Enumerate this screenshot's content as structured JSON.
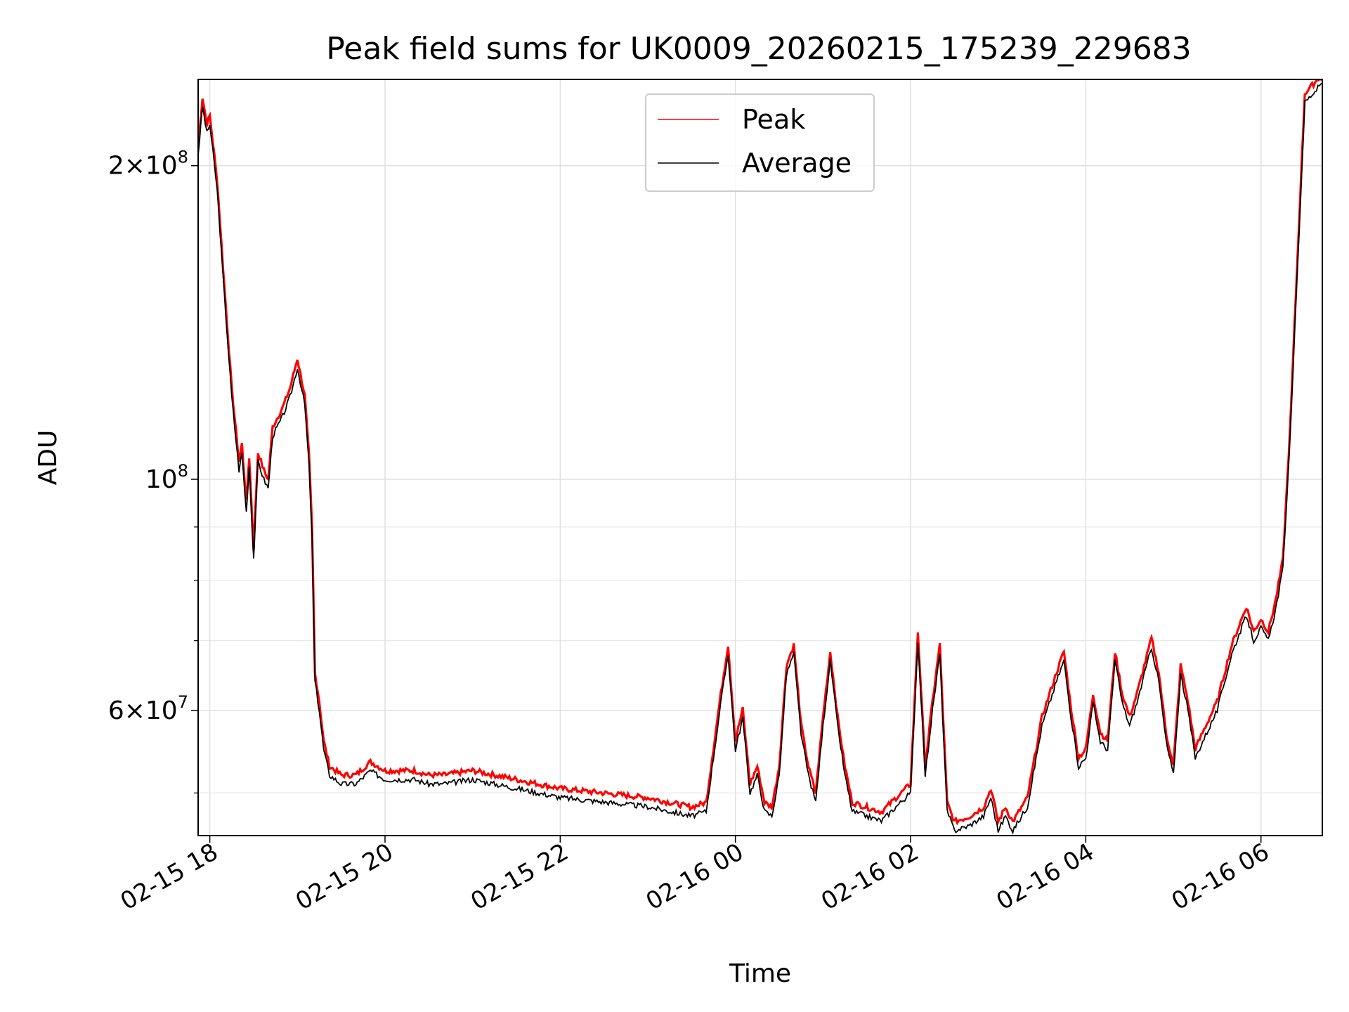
{
  "chart_data": {
    "type": "line",
    "title": "Peak field sums for UK0009_20260215_175239_229683",
    "xlabel": "Time",
    "ylabel": "ADU",
    "x_axis": {
      "kind": "datetime",
      "range": [
        "2026-02-15 17:52",
        "2026-02-16 06:42"
      ],
      "tick_values": [
        "2026-02-15 18:00",
        "2026-02-15 20:00",
        "2026-02-15 22:00",
        "2026-02-16 00:00",
        "2026-02-16 02:00",
        "2026-02-16 04:00",
        "2026-02-16 06:00"
      ],
      "tick_labels": [
        "02-15 18",
        "02-15 20",
        "02-15 22",
        "02-16 00",
        "02-16 02",
        "02-16 04",
        "02-16 06"
      ],
      "tick_rotation": "30 degrees"
    },
    "y_axis": {
      "scale": "log",
      "range": [
        45500000,
        242000000
      ],
      "labeled_ticks": [
        {
          "value": 60000000,
          "mantissa": "6",
          "times": "×",
          "base": "10",
          "exponent": "7"
        },
        {
          "value": 100000000,
          "mantissa": "",
          "times": "",
          "base": "10",
          "exponent": "8"
        },
        {
          "value": 200000000,
          "mantissa": "2",
          "times": "×",
          "base": "10",
          "exponent": "8"
        }
      ],
      "minor_ticks": [
        50000000,
        70000000,
        80000000,
        90000000
      ]
    },
    "grid": true,
    "legend": {
      "placement": "top-center",
      "entries": [
        {
          "label": "Peak",
          "color": "#ff0000"
        },
        {
          "label": "Average",
          "color": "#000000"
        }
      ]
    },
    "series": [
      {
        "name": "Average",
        "color": "#000000",
        "points": [
          [
            "2026-02-15 17:52",
            205000000
          ],
          [
            "2026-02-15 17:55",
            228000000
          ],
          [
            "2026-02-15 17:58",
            215000000
          ],
          [
            "2026-02-15 18:00",
            219000000
          ],
          [
            "2026-02-15 18:05",
            190000000
          ],
          [
            "2026-02-15 18:10",
            150000000
          ],
          [
            "2026-02-15 18:15",
            120000000
          ],
          [
            "2026-02-15 18:20",
            102000000
          ],
          [
            "2026-02-15 18:22",
            106000000
          ],
          [
            "2026-02-15 18:25",
            93000000
          ],
          [
            "2026-02-15 18:27",
            103000000
          ],
          [
            "2026-02-15 18:30",
            84000000
          ],
          [
            "2026-02-15 18:33",
            104000000
          ],
          [
            "2026-02-15 18:37",
            100000000
          ],
          [
            "2026-02-15 18:40",
            98000000
          ],
          [
            "2026-02-15 18:43",
            110000000
          ],
          [
            "2026-02-15 18:50",
            115000000
          ],
          [
            "2026-02-15 18:55",
            120000000
          ],
          [
            "2026-02-15 19:00",
            128000000
          ],
          [
            "2026-02-15 19:05",
            118000000
          ],
          [
            "2026-02-15 19:08",
            103000000
          ],
          [
            "2026-02-15 19:10",
            88000000
          ],
          [
            "2026-02-15 19:12",
            64000000
          ],
          [
            "2026-02-15 19:15",
            60000000
          ],
          [
            "2026-02-15 19:18",
            55000000
          ],
          [
            "2026-02-15 19:22",
            52000000
          ],
          [
            "2026-02-15 19:30",
            51000000
          ],
          [
            "2026-02-15 19:40",
            51000000
          ],
          [
            "2026-02-15 19:50",
            52500000
          ],
          [
            "2026-02-15 20:00",
            51500000
          ],
          [
            "2026-02-15 20:20",
            51500000
          ],
          [
            "2026-02-15 20:30",
            51000000
          ],
          [
            "2026-02-15 20:40",
            51000000
          ],
          [
            "2026-02-15 21:00",
            51500000
          ],
          [
            "2026-02-15 21:30",
            50500000
          ],
          [
            "2026-02-15 22:00",
            49500000
          ],
          [
            "2026-02-15 22:30",
            49000000
          ],
          [
            "2026-02-15 23:00",
            48500000
          ],
          [
            "2026-02-15 23:30",
            47500000
          ],
          [
            "2026-02-15 23:40",
            48000000
          ],
          [
            "2026-02-15 23:50",
            61000000
          ],
          [
            "2026-02-15 23:55",
            68000000
          ],
          [
            "2026-02-16 00:00",
            55000000
          ],
          [
            "2026-02-16 00:05",
            59000000
          ],
          [
            "2026-02-16 00:10",
            50000000
          ],
          [
            "2026-02-16 00:15",
            52000000
          ],
          [
            "2026-02-16 00:20",
            48000000
          ],
          [
            "2026-02-16 00:25",
            47500000
          ],
          [
            "2026-02-16 00:30",
            52000000
          ],
          [
            "2026-02-16 00:35",
            65000000
          ],
          [
            "2026-02-16 00:40",
            68000000
          ],
          [
            "2026-02-16 00:45",
            57000000
          ],
          [
            "2026-02-16 00:50",
            52000000
          ],
          [
            "2026-02-16 00:55",
            49000000
          ],
          [
            "2026-02-16 01:00",
            58000000
          ],
          [
            "2026-02-16 01:05",
            67000000
          ],
          [
            "2026-02-16 01:10",
            58000000
          ],
          [
            "2026-02-16 01:15",
            52000000
          ],
          [
            "2026-02-16 01:20",
            48000000
          ],
          [
            "2026-02-16 01:30",
            47500000
          ],
          [
            "2026-02-16 01:40",
            47000000
          ],
          [
            "2026-02-16 01:50",
            48500000
          ],
          [
            "2026-02-16 02:00",
            50000000
          ],
          [
            "2026-02-16 02:05",
            70000000
          ],
          [
            "2026-02-16 02:10",
            52000000
          ],
          [
            "2026-02-16 02:15",
            60000000
          ],
          [
            "2026-02-16 02:20",
            68000000
          ],
          [
            "2026-02-16 02:25",
            48000000
          ],
          [
            "2026-02-16 02:30",
            46000000
          ],
          [
            "2026-02-16 02:40",
            46500000
          ],
          [
            "2026-02-16 02:50",
            47500000
          ],
          [
            "2026-02-16 02:55",
            49500000
          ],
          [
            "2026-02-16 03:00",
            46000000
          ],
          [
            "2026-02-16 03:05",
            47500000
          ],
          [
            "2026-02-16 03:10",
            46000000
          ],
          [
            "2026-02-16 03:20",
            48500000
          ],
          [
            "2026-02-16 03:30",
            58000000
          ],
          [
            "2026-02-16 03:40",
            64000000
          ],
          [
            "2026-02-16 03:45",
            67000000
          ],
          [
            "2026-02-16 03:50",
            59000000
          ],
          [
            "2026-02-16 03:55",
            53000000
          ],
          [
            "2026-02-16 04:00",
            54000000
          ],
          [
            "2026-02-16 04:05",
            61000000
          ],
          [
            "2026-02-16 04:10",
            56000000
          ],
          [
            "2026-02-16 04:15",
            55000000
          ],
          [
            "2026-02-16 04:20",
            67000000
          ],
          [
            "2026-02-16 04:25",
            61000000
          ],
          [
            "2026-02-16 04:30",
            58000000
          ],
          [
            "2026-02-16 04:35",
            61000000
          ],
          [
            "2026-02-16 04:45",
            69000000
          ],
          [
            "2026-02-16 04:50",
            64000000
          ],
          [
            "2026-02-16 04:55",
            56000000
          ],
          [
            "2026-02-16 05:00",
            52000000
          ],
          [
            "2026-02-16 05:05",
            65000000
          ],
          [
            "2026-02-16 05:10",
            60000000
          ],
          [
            "2026-02-16 05:15",
            54000000
          ],
          [
            "2026-02-16 05:20",
            56000000
          ],
          [
            "2026-02-16 05:30",
            60000000
          ],
          [
            "2026-02-16 05:40",
            68000000
          ],
          [
            "2026-02-16 05:50",
            74000000
          ],
          [
            "2026-02-16 05:55",
            70000000
          ],
          [
            "2026-02-16 06:00",
            72000000
          ],
          [
            "2026-02-16 06:05",
            70000000
          ],
          [
            "2026-02-16 06:10",
            75000000
          ],
          [
            "2026-02-16 06:15",
            82000000
          ],
          [
            "2026-02-16 06:20",
            110000000
          ],
          [
            "2026-02-16 06:25",
            160000000
          ],
          [
            "2026-02-16 06:30",
            230000000
          ],
          [
            "2026-02-16 06:42",
            240000000
          ]
        ]
      },
      {
        "name": "Peak",
        "color": "#ff0000",
        "relation_to_average": "slightly above Average throughout, about 1-3% higher"
      }
    ]
  }
}
